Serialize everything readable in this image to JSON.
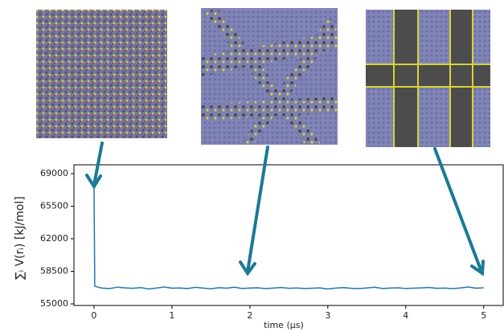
{
  "chart_data": {
    "type": "line",
    "xlabel": "time (μs)",
    "ylabel": "∑ᵢ V(rᵢ) [kJ/mol]",
    "x": [
      0,
      0.01,
      0.1,
      0.2,
      0.3,
      0.4,
      0.5,
      0.6,
      0.7,
      0.8,
      0.9,
      1.0,
      1.1,
      1.2,
      1.3,
      1.4,
      1.5,
      1.6,
      1.7,
      1.8,
      1.9,
      2.0,
      2.1,
      2.2,
      2.3,
      2.4,
      2.5,
      2.6,
      2.7,
      2.8,
      2.9,
      3.0,
      3.1,
      3.2,
      3.3,
      3.4,
      3.5,
      3.6,
      3.7,
      3.8,
      3.9,
      4.0,
      4.1,
      4.2,
      4.3,
      4.4,
      4.5,
      4.6,
      4.7,
      4.8,
      4.9,
      5.0
    ],
    "series": [
      {
        "color": "#1f77b4",
        "values": [
          68000,
          56900,
          56700,
          56650,
          56800,
          56720,
          56680,
          56750,
          56600,
          56700,
          56820,
          56690,
          56710,
          56650,
          56780,
          56700,
          56620,
          56740,
          56690,
          56800,
          56660,
          56700,
          56730,
          56640,
          56700,
          56760,
          56680,
          56710,
          56650,
          56690,
          56720,
          56600,
          56700,
          56750,
          56680,
          56640,
          56710,
          56790,
          56660,
          56700,
          56730,
          56650,
          56690,
          56720,
          56760,
          56680,
          56700,
          56640,
          56710,
          56820,
          56690,
          56730
        ]
      }
    ],
    "xlim": [
      -0.257,
      5.25
    ],
    "ylim": [
      54830,
      69950
    ],
    "xticks": [
      0,
      1,
      2,
      3,
      4,
      5
    ],
    "yticks": [
      55000,
      58500,
      62000,
      65500,
      69000
    ]
  }
}
